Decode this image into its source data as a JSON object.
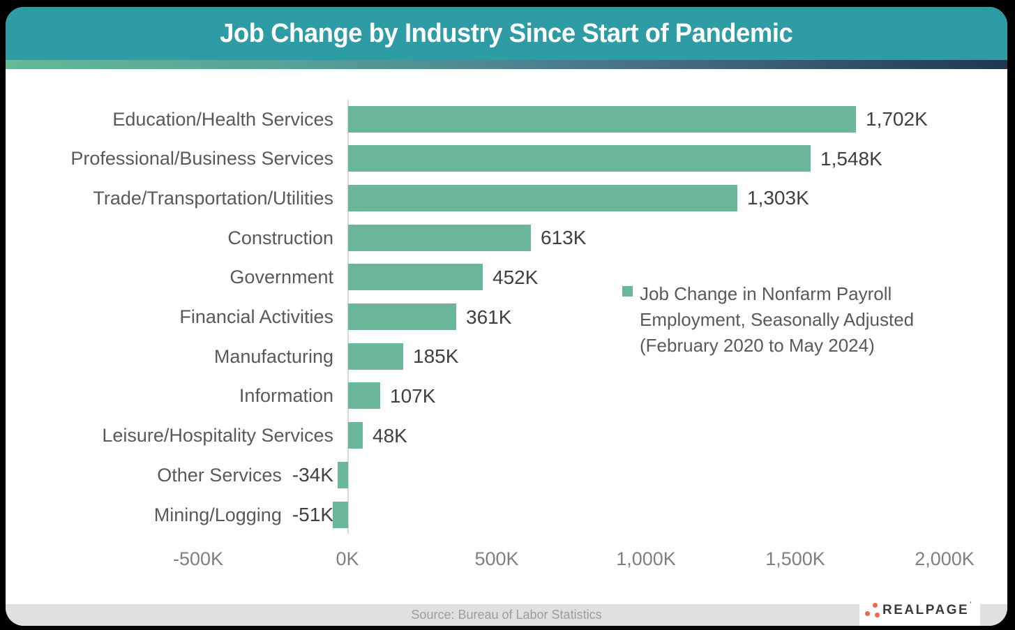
{
  "header": {
    "title": "Job Change by Industry Since Start of Pandemic"
  },
  "chart_data": {
    "type": "bar",
    "orientation": "horizontal",
    "title": "Job Change by Industry Since Start of Pandemic",
    "categories": [
      "Education/Health Services",
      "Professional/Business Services",
      "Trade/Transportation/Utilities",
      "Construction",
      "Government",
      "Financial Activities",
      "Manufacturing",
      "Information",
      "Leisure/Hospitality Services",
      "Other Services",
      "Mining/Logging"
    ],
    "values": [
      1702,
      1548,
      1303,
      613,
      452,
      361,
      185,
      107,
      48,
      -34,
      -51
    ],
    "value_labels": [
      "1,702K",
      "1,548K",
      "1,303K",
      "613K",
      "452K",
      "361K",
      "185K",
      "107K",
      "48K",
      "-34K",
      "-51K"
    ],
    "unit": "K",
    "x_ticks": [
      "-500K",
      "0K",
      "500K",
      "1,000K",
      "1,500K",
      "2,000K"
    ],
    "x_tick_values": [
      -500,
      0,
      500,
      1000,
      1500,
      2000
    ],
    "xlim": [
      -500,
      2000
    ],
    "grid": false,
    "bar_color": "#6AB79A",
    "legend": {
      "marker_color": "#6AB79A",
      "position": "center-right",
      "lines": [
        "Job Change in Nonfarm Payroll",
        "Employment, Seasonally Adjusted",
        "(February 2020 to May 2024)"
      ]
    }
  },
  "footer": {
    "source": "Source: Bureau of Labor Statistics"
  },
  "logo": {
    "text": "REALPAGE",
    "trademark": "’",
    "dot_color": "#E96A4C",
    "text_color": "#3B3B3A"
  },
  "colors": {
    "header_bg": "#2E9CA4",
    "gradient_left": "#67B896",
    "gradient_right": "#1D3950",
    "bar": "#6AB79A",
    "category_label": "#595959",
    "value_label": "#404040",
    "tick_label": "#7F7F7F",
    "axis_line": "#D9D9D9",
    "footer_bg": "#E0E0E1",
    "footer_text": "#9C9C9C",
    "outer_bg": "#000000"
  }
}
